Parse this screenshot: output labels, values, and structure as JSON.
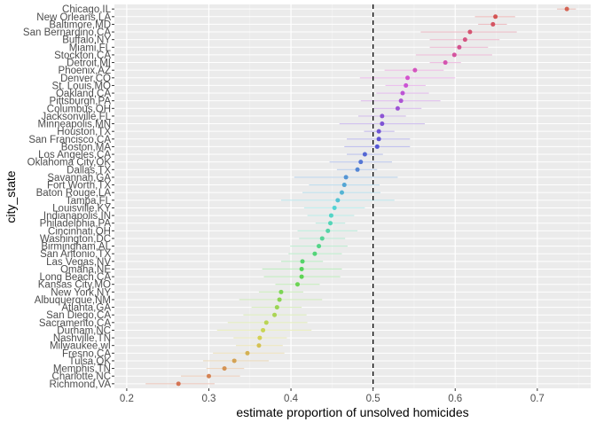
{
  "chart_data": {
    "type": "scatter",
    "orientation": "horizontal",
    "xlabel": "estimate proportion of unsolved homicides",
    "ylabel": "city_state",
    "xlim": [
      0.185,
      0.765
    ],
    "xticks": [
      0.2,
      0.3,
      0.4,
      0.5,
      0.6,
      0.7
    ],
    "xtick_labels": [
      "0.2",
      "0.3",
      "0.4",
      "0.5",
      "0.6",
      "0.7"
    ],
    "reference_line": {
      "x": 0.5,
      "style": "dashed",
      "color": "#000000"
    },
    "grid": true,
    "legend": "none",
    "colors": {
      "panel_background": "#ebebeb",
      "grid_major": "#ffffff"
    },
    "categories": [
      "Chicago,IL",
      "New Orleans,LA",
      "Baltimore,MD",
      "San Bernardino,CA",
      "Buffalo,NY",
      "Miami,FL",
      "Stockton,CA",
      "Detroit,MI",
      "Phoenix,AZ",
      "Denver,CO",
      "St. Louis,MO",
      "Oakland,CA",
      "Pittsburgh,PA",
      "Columbus,OH",
      "Jacksonville,FL",
      "Minneapolis,MN",
      "Houston,TX",
      "San Francisco,CA",
      "Boston,MA",
      "Los Angeles,CA",
      "Oklahoma City,OK",
      "Dallas,TX",
      "Savannah,GA",
      "Fort Worth,TX",
      "Baton Rouge,LA",
      "Tampa,FL",
      "Louisville,KY",
      "Indianapolis,IN",
      "Philadelphia,PA",
      "Cincinnati,OH",
      "Washington,DC",
      "Birmingham,AL",
      "San Antonio,TX",
      "Las Vegas,NV",
      "Omaha,NE",
      "Long Beach,CA",
      "Kansas City,MO",
      "New York,NY",
      "Albuquerque,NM",
      "Atlanta,GA",
      "San Diego,CA",
      "Sacramento,CA",
      "Durham,NC",
      "Nashville,TN",
      "Milwaukee,wI",
      "Fresno,CA",
      "Tulsa,OK",
      "Memphis,TN",
      "Charlotte,NC",
      "Richmond,VA"
    ],
    "estimates": [
      0.736,
      0.649,
      0.646,
      0.618,
      0.612,
      0.605,
      0.599,
      0.588,
      0.551,
      0.542,
      0.54,
      0.536,
      0.534,
      0.53,
      0.511,
      0.511,
      0.507,
      0.507,
      0.505,
      0.49,
      0.485,
      0.481,
      0.467,
      0.465,
      0.462,
      0.457,
      0.453,
      0.449,
      0.448,
      0.445,
      0.438,
      0.434,
      0.429,
      0.414,
      0.413,
      0.413,
      0.408,
      0.388,
      0.386,
      0.383,
      0.38,
      0.37,
      0.366,
      0.362,
      0.361,
      0.347,
      0.331,
      0.319,
      0.3,
      0.263
    ],
    "ci_low": [
      0.724,
      0.624,
      0.628,
      0.558,
      0.569,
      0.569,
      0.552,
      0.569,
      0.514,
      0.484,
      0.515,
      0.504,
      0.485,
      0.5,
      0.482,
      0.459,
      0.489,
      0.468,
      0.465,
      0.468,
      0.447,
      0.456,
      0.404,
      0.422,
      0.414,
      0.388,
      0.416,
      0.42,
      0.43,
      0.408,
      0.41,
      0.399,
      0.397,
      0.388,
      0.365,
      0.367,
      0.381,
      0.361,
      0.337,
      0.352,
      0.342,
      0.323,
      0.31,
      0.33,
      0.333,
      0.305,
      0.293,
      0.297,
      0.266,
      0.223
    ],
    "ci_high": [
      0.747,
      0.673,
      0.663,
      0.675,
      0.654,
      0.64,
      0.645,
      0.607,
      0.586,
      0.6,
      0.564,
      0.568,
      0.582,
      0.559,
      0.54,
      0.563,
      0.526,
      0.545,
      0.545,
      0.512,
      0.523,
      0.505,
      0.53,
      0.508,
      0.509,
      0.526,
      0.49,
      0.477,
      0.466,
      0.481,
      0.466,
      0.469,
      0.462,
      0.439,
      0.462,
      0.46,
      0.435,
      0.415,
      0.438,
      0.413,
      0.419,
      0.42,
      0.425,
      0.395,
      0.39,
      0.392,
      0.373,
      0.343,
      0.338,
      0.307
    ]
  }
}
